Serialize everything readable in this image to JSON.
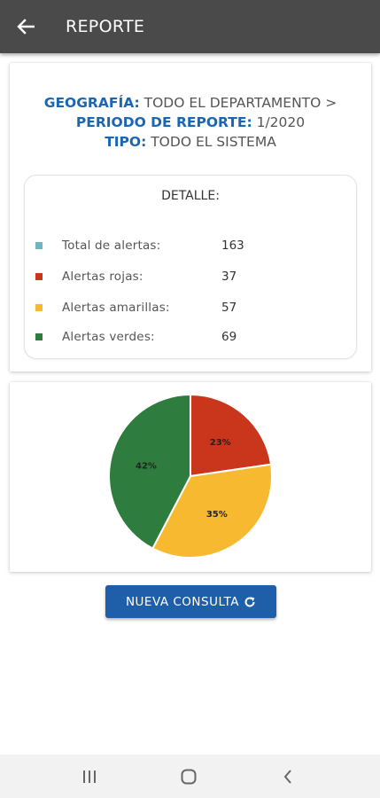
{
  "appbar": {
    "title": "REPORTE",
    "back_icon": "arrow-left-icon"
  },
  "info": {
    "geografia_label": "GEOGRAFÍA:",
    "geografia_value": "TODO EL DEPARTAMENTO >",
    "periodo_label": "PERIODO DE REPORTE:",
    "periodo_value": "1/2020",
    "tipo_label": "TIPO:",
    "tipo_value": "TODO EL SISTEMA"
  },
  "detalle": {
    "title": "DETALLE:",
    "rows": [
      {
        "label": "Total de alertas:",
        "value": "163",
        "color": "#6fb7c0"
      },
      {
        "label": "Alertas rojas:",
        "value": "37",
        "color": "#c9361c"
      },
      {
        "label": "Alertas amarillas:",
        "value": "57",
        "color": "#f6b92f"
      },
      {
        "label": "Alertas verdes:",
        "value": "69",
        "color": "#2e7d3f"
      }
    ]
  },
  "chart_data": {
    "type": "pie",
    "categories": [
      "Alertas rojas",
      "Alertas amarillas",
      "Alertas verdes"
    ],
    "values": [
      37,
      57,
      69
    ],
    "labels": [
      "23%",
      "35%",
      "42%"
    ],
    "colors": [
      "#c9361c",
      "#f6b92f",
      "#2e7d3f"
    ]
  },
  "button": {
    "label": "NUEVA CONSULTA",
    "icon": "refresh-icon"
  },
  "system_nav": {
    "recents_icon": "recents-icon",
    "home_icon": "home-icon",
    "back_icon": "back-chevron-icon"
  }
}
